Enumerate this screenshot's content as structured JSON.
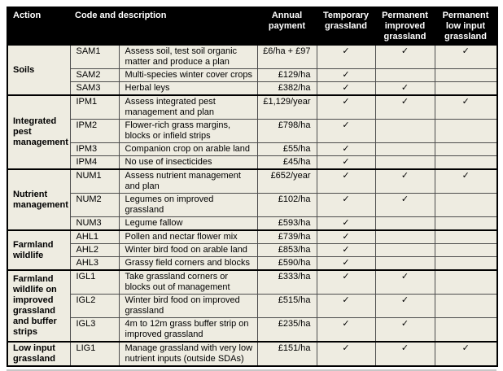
{
  "colors": {
    "header_bg": "#000000",
    "header_text": "#ffffff",
    "body_bg": "#eeece1",
    "thick_border": "#000000",
    "thin_border": "#4d4d4d"
  },
  "table": {
    "checkmark": "✓",
    "header": {
      "action": "Action",
      "code_description": "Code and description",
      "payment": "Annual payment",
      "temporary": "Temporary grassland",
      "permanent_improved": "Permanent improved grassland",
      "permanent_low_input": "Permanent low input grassland"
    },
    "sections": [
      {
        "action": "Soils",
        "rows": [
          {
            "code": "SAM1",
            "description": "Assess soil, test soil organic matter and produce a plan",
            "payment": "£6/ha + £97",
            "checks": [
              true,
              true,
              true
            ]
          },
          {
            "code": "SAM2",
            "description": "Multi-species winter cover crops",
            "payment": "£129/ha",
            "checks": [
              true,
              false,
              false
            ]
          },
          {
            "code": "SAM3",
            "description": "Herbal leys",
            "payment": "£382/ha",
            "checks": [
              true,
              true,
              false
            ]
          }
        ]
      },
      {
        "action": "Integrated pest management",
        "rows": [
          {
            "code": "IPM1",
            "description": "Assess integrated pest management and plan",
            "payment": "£1,129/year",
            "checks": [
              true,
              true,
              true
            ]
          },
          {
            "code": "IPM2",
            "description": "Flower-rich grass margins, blocks or infield strips",
            "payment": "£798/ha",
            "checks": [
              true,
              false,
              false
            ]
          },
          {
            "code": "IPM3",
            "description": "Companion crop on arable land",
            "payment": "£55/ha",
            "checks": [
              true,
              false,
              false
            ]
          },
          {
            "code": "IPM4",
            "description": "No use of insecticides",
            "payment": "£45/ha",
            "checks": [
              true,
              false,
              false
            ]
          }
        ]
      },
      {
        "action": "Nutrient management",
        "rows": [
          {
            "code": "NUM1",
            "description": "Assess nutrient management and plan",
            "payment": "£652/year",
            "checks": [
              true,
              true,
              true
            ]
          },
          {
            "code": "NUM2",
            "description": "Legumes on improved grassland",
            "payment": "£102/ha",
            "checks": [
              true,
              true,
              false
            ]
          },
          {
            "code": "NUM3",
            "description": "Legume fallow",
            "payment": "£593/ha",
            "checks": [
              true,
              false,
              false
            ]
          }
        ]
      },
      {
        "action": "Farmland wildlife",
        "rows": [
          {
            "code": "AHL1",
            "description": "Pollen and nectar flower mix",
            "payment": "£739/ha",
            "checks": [
              true,
              false,
              false
            ]
          },
          {
            "code": "AHL2",
            "description": "Winter bird food on arable land",
            "payment": "£853/ha",
            "checks": [
              true,
              false,
              false
            ]
          },
          {
            "code": "AHL3",
            "description": "Grassy field corners and blocks",
            "payment": "£590/ha",
            "checks": [
              true,
              false,
              false
            ]
          }
        ]
      },
      {
        "action": "Farmland wildlife on improved grassland and buffer strips",
        "rows": [
          {
            "code": "IGL1",
            "description": "Take grassland corners or blocks out of management",
            "payment": "£333/ha",
            "checks": [
              true,
              true,
              false
            ]
          },
          {
            "code": "IGL2",
            "description": "Winter bird food on improved grassland",
            "payment": "£515/ha",
            "checks": [
              true,
              true,
              false
            ]
          },
          {
            "code": "IGL3",
            "description": "4m to 12m grass buffer strip on improved grassland",
            "payment": "£235/ha",
            "checks": [
              true,
              true,
              false
            ]
          }
        ]
      },
      {
        "action": "Low input grassland",
        "rows": [
          {
            "code": "LIG1",
            "description": "Manage grassland with very low nutrient inputs (outside SDAs)",
            "payment": "£151/ha",
            "checks": [
              true,
              true,
              true
            ]
          }
        ]
      }
    ]
  }
}
